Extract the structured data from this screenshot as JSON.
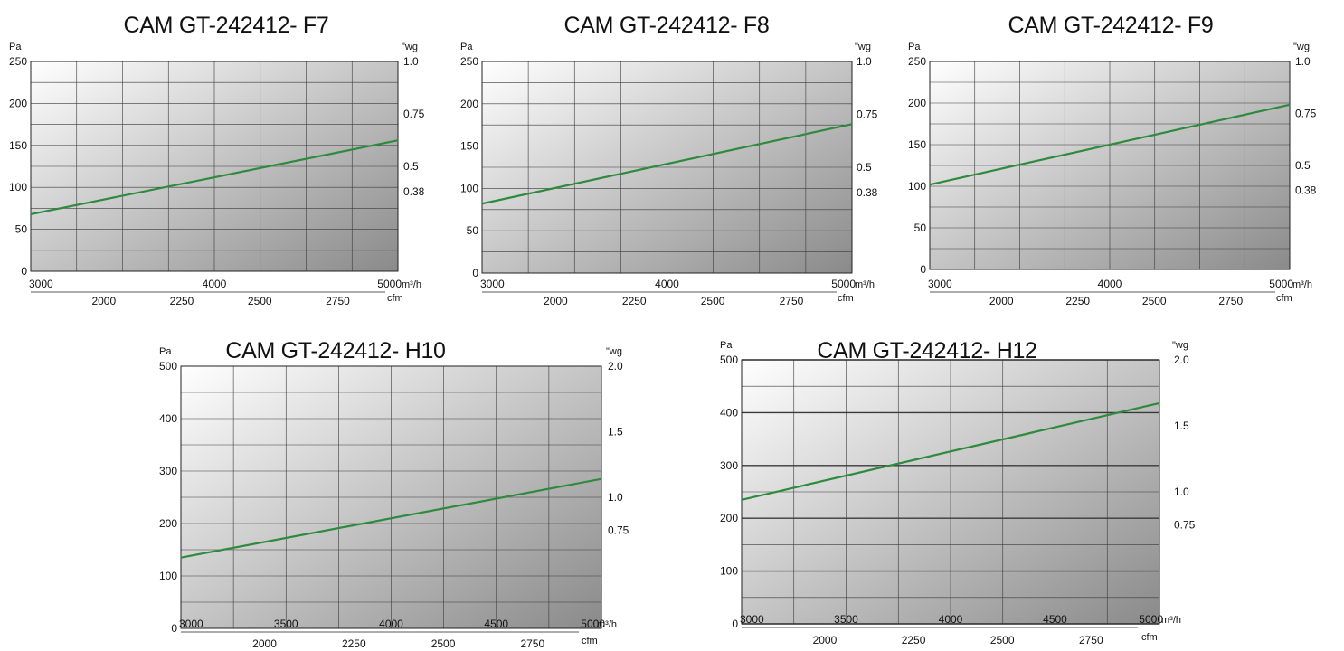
{
  "chart_data": [
    {
      "type": "line",
      "title": "CAM GT-242412- F7",
      "ylabel_left": "Pa",
      "ylabel_right": "\"wg",
      "xunit_primary": "m³/h",
      "xunit_secondary": "cfm",
      "ylim": [
        0,
        250
      ],
      "yticks": [
        0,
        50,
        100,
        150,
        200,
        250
      ],
      "yticks_right": [
        {
          "value": 0.38,
          "label": "0.38"
        },
        {
          "value": 0.5,
          "label": "0.5"
        },
        {
          "value": 0.75,
          "label": "0.75"
        },
        {
          "value": 1.0,
          "label": "1.0"
        }
      ],
      "xlim": [
        3000,
        5000
      ],
      "xticks_primary": [
        3000,
        4000,
        5000
      ],
      "xticks_secondary": [
        2000,
        2250,
        2500,
        2750
      ],
      "x": [
        3000,
        5000
      ],
      "series": [
        {
          "values": [
            68,
            156
          ]
        }
      ]
    },
    {
      "type": "line",
      "title": "CAM GT-242412- F8",
      "ylabel_left": "Pa",
      "ylabel_right": "\"wg",
      "xunit_primary": "m³/h",
      "xunit_secondary": "cfm",
      "ylim": [
        0,
        250
      ],
      "yticks": [
        0,
        50,
        100,
        150,
        200,
        250
      ],
      "yticks_right": [
        {
          "value": 0.38,
          "label": "0.38"
        },
        {
          "value": 0.5,
          "label": "0.5"
        },
        {
          "value": 0.75,
          "label": "0.75"
        },
        {
          "value": 1.0,
          "label": "1.0"
        }
      ],
      "xlim": [
        3000,
        5000
      ],
      "xticks_primary": [
        3000,
        4000,
        5000
      ],
      "xticks_secondary": [
        2000,
        2250,
        2500,
        2750
      ],
      "x": [
        3000,
        5000
      ],
      "series": [
        {
          "values": [
            82,
            176
          ]
        }
      ]
    },
    {
      "type": "line",
      "title": "CAM GT-242412- F9",
      "ylabel_left": "Pa",
      "ylabel_right": "\"wg",
      "xunit_primary": "m³/h",
      "xunit_secondary": "cfm",
      "ylim": [
        0,
        250
      ],
      "yticks": [
        0,
        50,
        100,
        150,
        200,
        250
      ],
      "yticks_right": [
        {
          "value": 0.38,
          "label": "0.38"
        },
        {
          "value": 0.5,
          "label": "0.5"
        },
        {
          "value": 0.75,
          "label": "0.75"
        },
        {
          "value": 1.0,
          "label": "1.0"
        }
      ],
      "xlim": [
        3000,
        5000
      ],
      "xticks_primary": [
        3000,
        4000,
        5000
      ],
      "xticks_secondary": [
        2000,
        2250,
        2500,
        2750
      ],
      "x": [
        3000,
        5000
      ],
      "series": [
        {
          "values": [
            102,
            198
          ]
        }
      ]
    },
    {
      "type": "line",
      "title": "CAM GT-242412- H10",
      "ylabel_left": "Pa",
      "ylabel_right": "\"wg",
      "xunit_primary": "m³/h",
      "xunit_secondary": "cfm",
      "ylim": [
        0,
        500
      ],
      "yticks": [
        0,
        100,
        200,
        300,
        400,
        500
      ],
      "yticks_right": [
        {
          "value": 0.75,
          "label": "0.75"
        },
        {
          "value": 1.0,
          "label": "1.0"
        },
        {
          "value": 1.5,
          "label": "1.5"
        },
        {
          "value": 2.0,
          "label": "2.0"
        }
      ],
      "xlim": [
        3000,
        5000
      ],
      "xticks_primary": [
        3000,
        3500,
        4000,
        4500,
        5000
      ],
      "xticks_secondary": [
        2000,
        2250,
        2500,
        2750
      ],
      "x": [
        3000,
        5000
      ],
      "series": [
        {
          "values": [
            135,
            285
          ]
        }
      ]
    },
    {
      "type": "line",
      "title": "CAM GT-242412- H12",
      "ylabel_left": "Pa",
      "ylabel_right": "\"wg",
      "xunit_primary": "m³/h",
      "xunit_secondary": "cfm",
      "ylim": [
        0,
        500
      ],
      "yticks": [
        0,
        100,
        200,
        300,
        400,
        500
      ],
      "yticks_right": [
        {
          "value": 0.75,
          "label": "0.75"
        },
        {
          "value": 1.0,
          "label": "1.0"
        },
        {
          "value": 1.5,
          "label": "1.5"
        },
        {
          "value": 2.0,
          "label": "2.0"
        }
      ],
      "xlim": [
        3000,
        5000
      ],
      "xticks_primary": [
        3000,
        3500,
        4000,
        4500,
        5000
      ],
      "xticks_secondary": [
        2000,
        2250,
        2500,
        2750
      ],
      "x": [
        3000,
        5000
      ],
      "series": [
        {
          "values": [
            235,
            418
          ]
        }
      ]
    }
  ],
  "colors": {
    "line": "#2e8b3e",
    "grid": "#3a3a3a",
    "bg_light": "#ffffff",
    "bg_dark": "#8a8a8a"
  }
}
